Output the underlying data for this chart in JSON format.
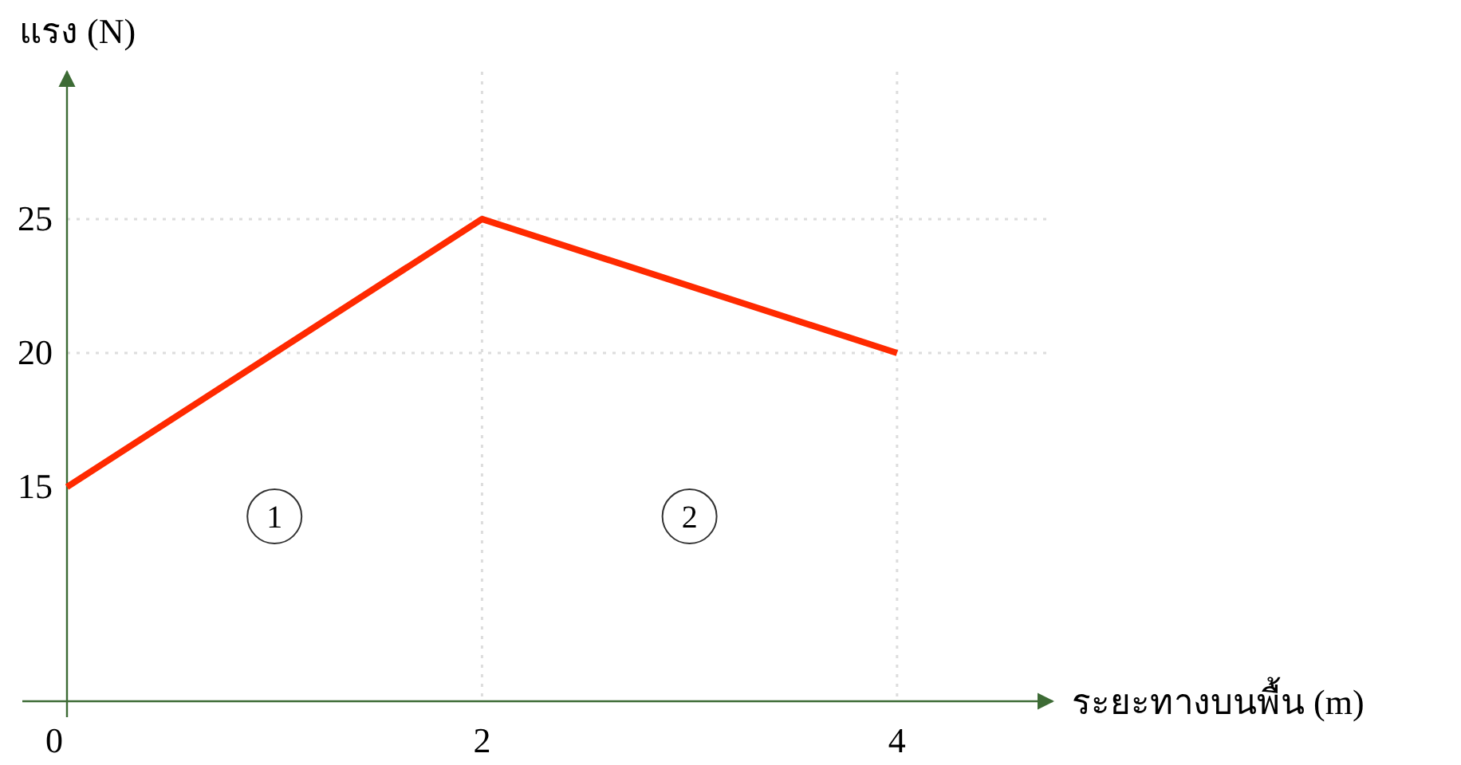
{
  "chart_data": {
    "type": "line",
    "xlabel": "ระยะทางบนพื้น (m)",
    "ylabel": "แรง (N)",
    "x": [
      0,
      2,
      4
    ],
    "series": [
      {
        "color": "#ff2a00",
        "values": [
          15,
          25,
          20
        ]
      }
    ],
    "xlim": [
      0,
      4.75
    ],
    "ylim": [
      7,
      30.5
    ],
    "xticks": [
      0,
      2,
      4
    ],
    "yticks": [
      15,
      20,
      25
    ],
    "marker": "none",
    "line_style": "solid",
    "ref_lines": [
      {
        "axis": "y",
        "value": 25,
        "color": "#dddddd",
        "line_style": "dotted"
      },
      {
        "axis": "y",
        "value": 20,
        "color": "#dddddd",
        "line_style": "dotted"
      },
      {
        "axis": "x",
        "value": 2,
        "color": "#dddddd",
        "line_style": "dotted"
      },
      {
        "axis": "x",
        "value": 4,
        "color": "#dddddd",
        "line_style": "dotted"
      }
    ],
    "annotations": [
      {
        "text": "1",
        "x": 1,
        "y": 13.9
      },
      {
        "text": "2",
        "x": 3,
        "y": 13.9
      }
    ]
  }
}
